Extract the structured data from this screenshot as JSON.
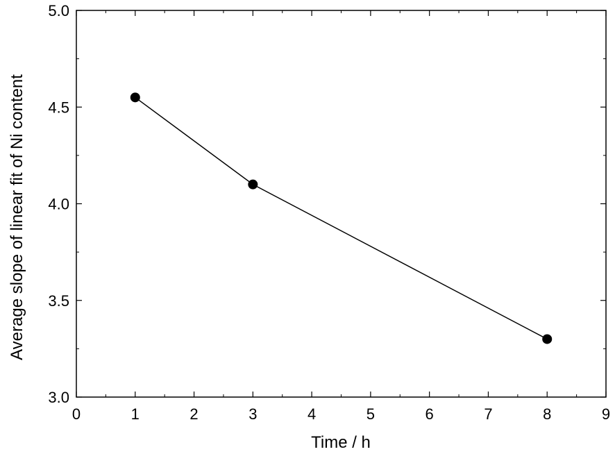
{
  "chart_data": {
    "type": "line",
    "title": "",
    "xlabel": "Time / h",
    "ylabel": "Average slope of linear fit of Ni content",
    "xlim": [
      0,
      9
    ],
    "ylim": [
      3.0,
      5.0
    ],
    "x_ticks": [
      "0",
      "1",
      "2",
      "3",
      "4",
      "5",
      "6",
      "7",
      "8",
      "9"
    ],
    "y_ticks": [
      "3.0",
      "3.5",
      "4.0",
      "4.5",
      "5.0"
    ],
    "grid": false,
    "series": [
      {
        "x": [
          1,
          3,
          8
        ],
        "y": [
          4.55,
          4.1,
          3.3
        ],
        "color": "#000000",
        "marker": "circle"
      }
    ]
  }
}
